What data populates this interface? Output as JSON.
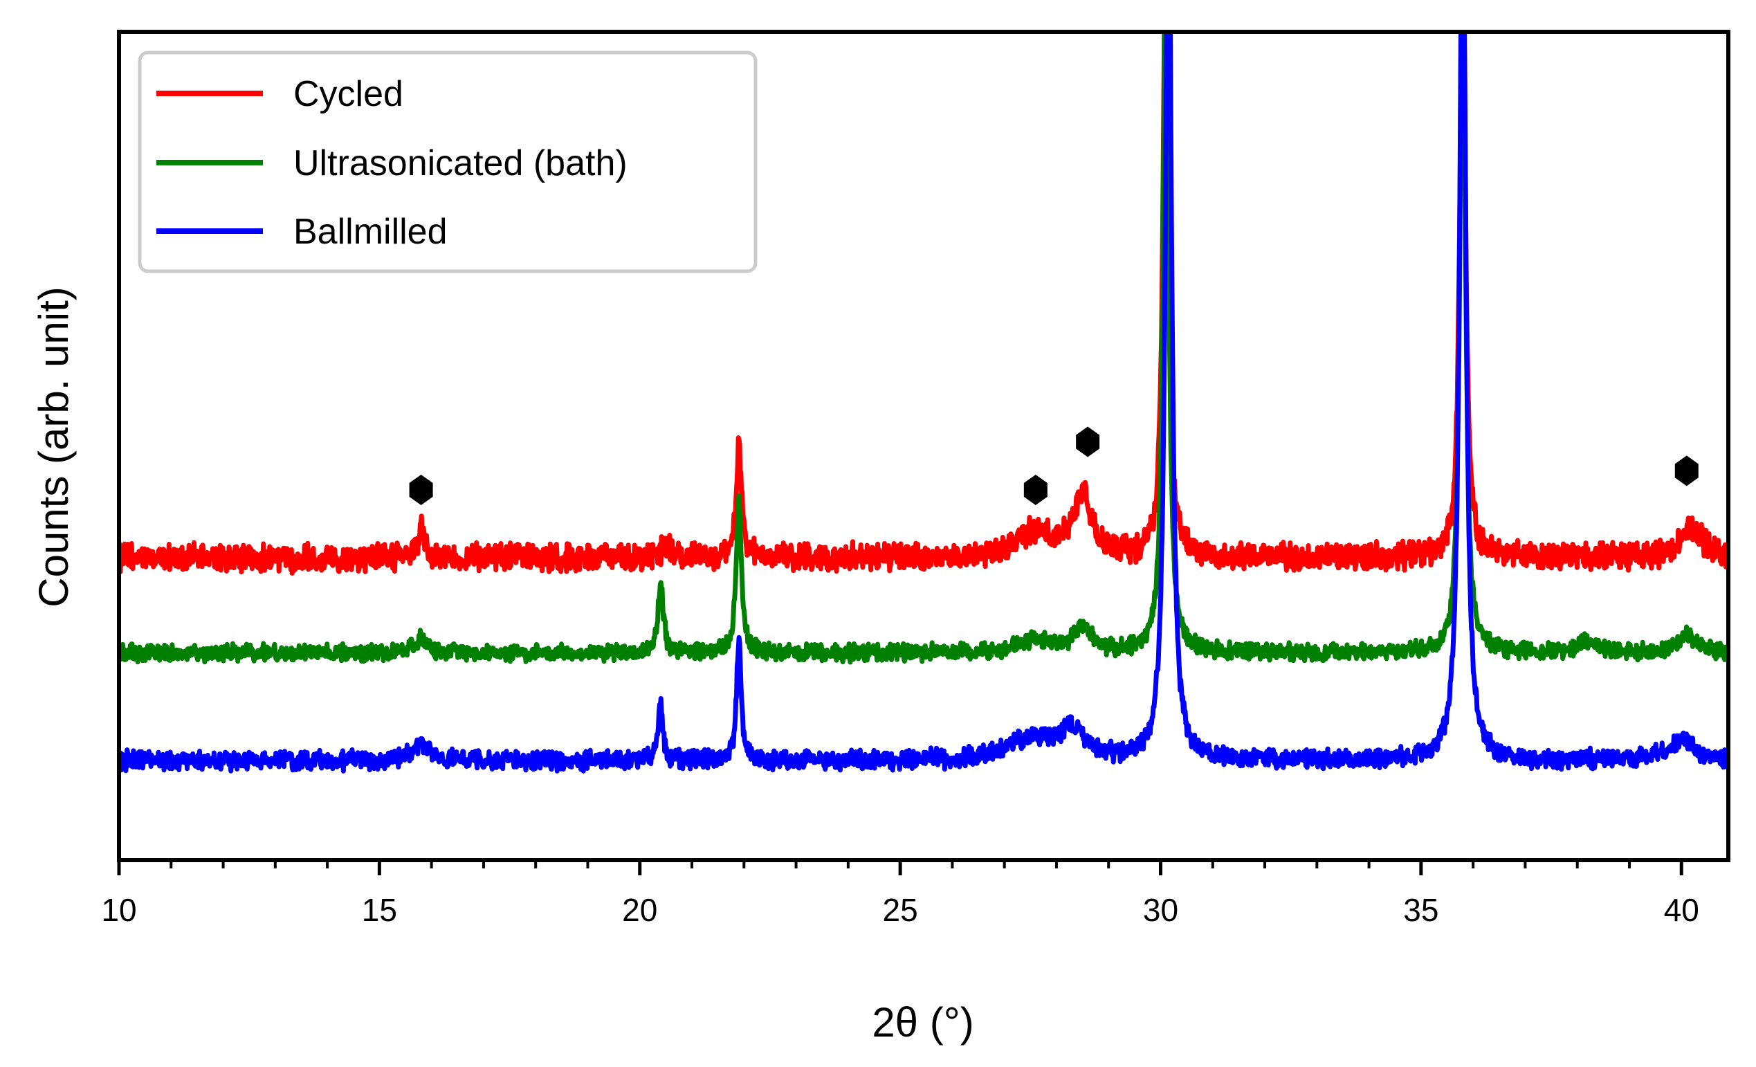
{
  "chart_data": {
    "type": "line",
    "title": "",
    "xlabel": "2θ (°)",
    "ylabel": "Counts (arb. unit)",
    "xlim": [
      10,
      40.9
    ],
    "ylim": [
      0,
      100
    ],
    "x_ticks": [
      10,
      15,
      20,
      25,
      30,
      35,
      40
    ],
    "x_tick_labels": [
      "10",
      "15",
      "20",
      "25",
      "30",
      "35",
      "40"
    ],
    "y_ticks_labeled": false,
    "legend_position": "top-left",
    "series": [
      {
        "name": "Cycled",
        "color": "#ff0000",
        "baseline": 36.5,
        "noise": 1.3,
        "peaks": [
          {
            "x": 15.8,
            "height": 3.5,
            "width": 0.08
          },
          {
            "x": 20.5,
            "height": 2.0,
            "width": 0.08
          },
          {
            "x": 21.9,
            "height": 13.5,
            "width": 0.06
          },
          {
            "x": 27.6,
            "height": 3.0,
            "width": 0.4
          },
          {
            "x": 28.5,
            "height": 7.5,
            "width": 0.2
          },
          {
            "x": 30.1,
            "height": 80,
            "width": 0.06
          },
          {
            "x": 35.8,
            "height": 80,
            "width": 0.06
          },
          {
            "x": 40.2,
            "height": 3.5,
            "width": 0.25
          }
        ]
      },
      {
        "name": "Ultrasonicated (bath)",
        "color": "#008000",
        "baseline": 25.0,
        "noise": 0.8,
        "peaks": [
          {
            "x": 15.8,
            "height": 1.8,
            "width": 0.15
          },
          {
            "x": 20.4,
            "height": 8.5,
            "width": 0.06
          },
          {
            "x": 21.9,
            "height": 18.0,
            "width": 0.06
          },
          {
            "x": 27.6,
            "height": 1.5,
            "width": 0.4
          },
          {
            "x": 28.5,
            "height": 3.0,
            "width": 0.2
          },
          {
            "x": 30.1,
            "height": 90,
            "width": 0.06
          },
          {
            "x": 35.8,
            "height": 90,
            "width": 0.06
          },
          {
            "x": 38.2,
            "height": 1.5,
            "width": 0.2
          },
          {
            "x": 40.1,
            "height": 2.0,
            "width": 0.25
          }
        ]
      },
      {
        "name": "Ballmilled",
        "color": "#0000ff",
        "baseline": 12.0,
        "noise": 0.9,
        "peaks": [
          {
            "x": 15.8,
            "height": 2.0,
            "width": 0.2
          },
          {
            "x": 20.4,
            "height": 7.0,
            "width": 0.05
          },
          {
            "x": 21.9,
            "height": 15.0,
            "width": 0.05
          },
          {
            "x": 27.5,
            "height": 2.5,
            "width": 0.5
          },
          {
            "x": 28.3,
            "height": 3.5,
            "width": 0.3
          },
          {
            "x": 30.15,
            "height": 110,
            "width": 0.07
          },
          {
            "x": 35.8,
            "height": 110,
            "width": 0.07
          },
          {
            "x": 40.0,
            "height": 2.5,
            "width": 0.3
          }
        ]
      }
    ],
    "markers": [
      {
        "x": 15.8,
        "y": 44.7,
        "symbol": "diamond"
      },
      {
        "x": 27.6,
        "y": 44.7,
        "symbol": "diamond"
      },
      {
        "x": 28.6,
        "y": 50.5,
        "symbol": "diamond"
      },
      {
        "x": 40.1,
        "y": 47.0,
        "symbol": "diamond"
      }
    ]
  }
}
